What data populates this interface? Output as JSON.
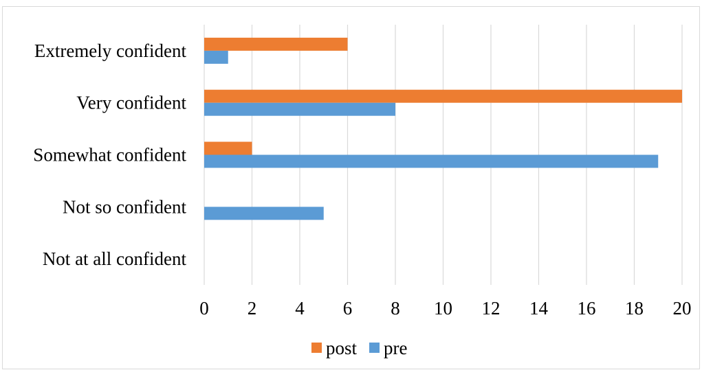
{
  "chart_data": {
    "type": "bar",
    "orientation": "horizontal",
    "categories": [
      "Extremely confident",
      "Very confident",
      "Somewhat confident",
      "Not so confident",
      "Not at all confident"
    ],
    "series": [
      {
        "name": "post",
        "color": "#ed7d31",
        "values": [
          6,
          20,
          2,
          0,
          0
        ]
      },
      {
        "name": "pre",
        "color": "#5b9bd5",
        "values": [
          1,
          8,
          19,
          5,
          0
        ]
      }
    ],
    "xticks": [
      0,
      2,
      4,
      6,
      8,
      10,
      12,
      14,
      16,
      18,
      20
    ],
    "xlim": [
      0,
      20
    ],
    "grid": true,
    "legend": "bottom"
  }
}
